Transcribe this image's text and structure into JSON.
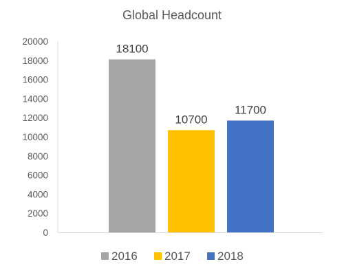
{
  "chart_data": {
    "type": "bar",
    "title": "Global Headcount",
    "xlabel": "",
    "ylabel": "",
    "ylim": [
      0,
      20000
    ],
    "yticks": [
      0,
      2000,
      4000,
      6000,
      8000,
      10000,
      12000,
      14000,
      16000,
      18000,
      20000
    ],
    "grid": false,
    "legend_position": "bottom",
    "series": [
      {
        "name": "2016",
        "value": 18100,
        "label": "18100",
        "color": "#a5a5a5"
      },
      {
        "name": "2017",
        "value": 10700,
        "label": "10700",
        "color": "#ffc000"
      },
      {
        "name": "2018",
        "value": 11700,
        "label": "11700",
        "color": "#4472c4"
      }
    ]
  }
}
